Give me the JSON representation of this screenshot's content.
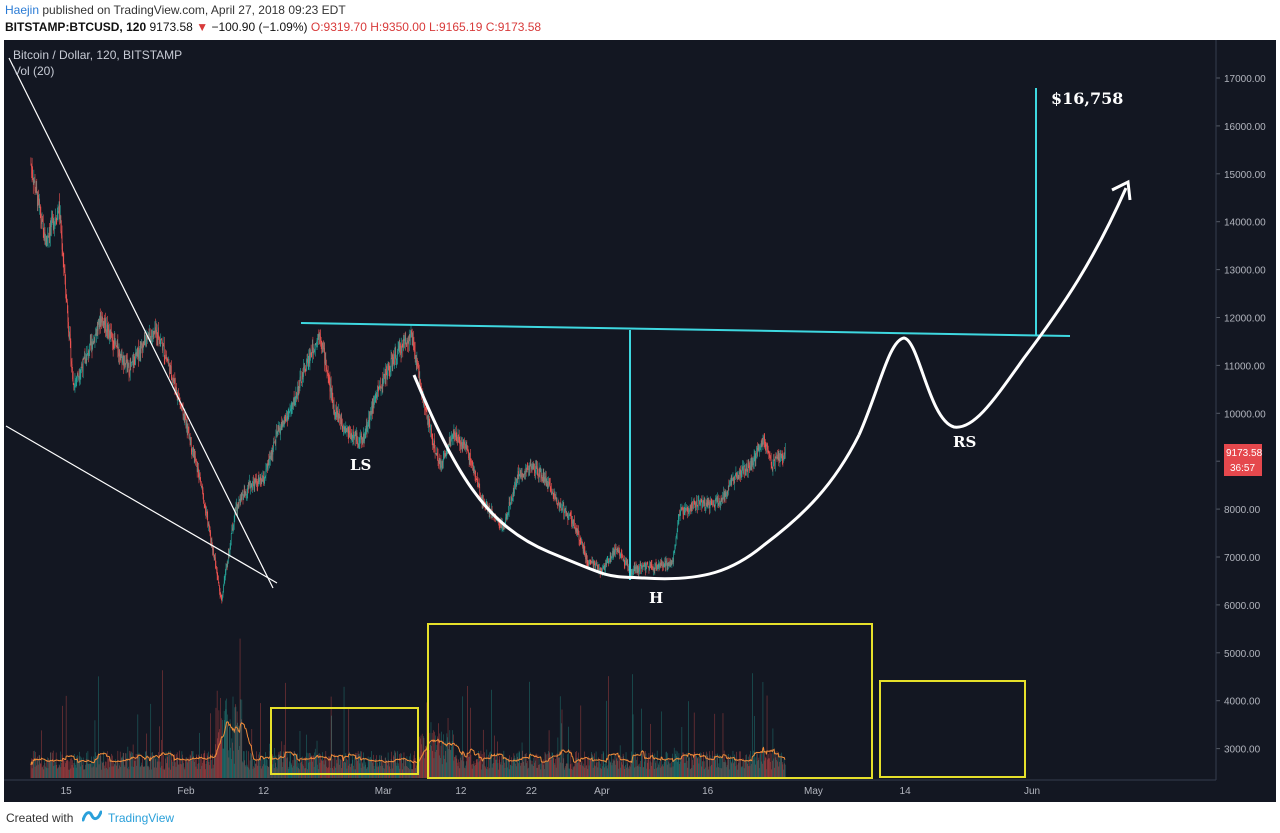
{
  "header": {
    "author": "Haejin",
    "published_text": "published on TradingView.com, April 27, 2018 09:23 EDT",
    "symbol": "BITSTAMP:BTCUSD, 120",
    "last": "9173.58",
    "change": "−100.90 (−1.09%)",
    "open": "O:9319.70",
    "high": "H:9350.00",
    "low": "L:9165.19",
    "close": "C:9173.58"
  },
  "legend": {
    "title": "Bitcoin / Dollar, 120, BITSTAMP",
    "volume": "Vol (20)"
  },
  "footer": {
    "created_with": "Created with",
    "brand": "TradingView"
  },
  "colors": {
    "background": "#131722",
    "up": "#26a69a",
    "down": "#ef5350",
    "annotation": "#ffffff",
    "neckline": "#3ed8e0",
    "box": "#e6e02a",
    "volume_ma": "#f08c3a",
    "price_label": "#e5484d"
  },
  "chart_data": {
    "type": "candlestick",
    "title": "Bitcoin / Dollar, 120, BITSTAMP",
    "x_ticks": [
      "15",
      "Feb",
      "12",
      "Mar",
      "12",
      "22",
      "Apr",
      "16",
      "May",
      "14",
      "Jun"
    ],
    "y_ticks": [
      3000,
      4000,
      5000,
      6000,
      7000,
      8000,
      9000,
      10000,
      11000,
      12000,
      13000,
      14000,
      15000,
      16000,
      17000
    ],
    "ylim": [
      2300,
      17900
    ],
    "last_price": "9173.58",
    "countdown": "36:57",
    "price_path": [
      [
        "Jan 10",
        15200
      ],
      [
        "Jan 12",
        13600
      ],
      [
        "Jan 14",
        14300
      ],
      [
        "Jan 16",
        10600
      ],
      [
        "Jan 18",
        11200
      ],
      [
        "Jan 20",
        12000
      ],
      [
        "Jan 22",
        11400
      ],
      [
        "Jan 24",
        10900
      ],
      [
        "Jan 26",
        11500
      ],
      [
        "Jan 28",
        11700
      ],
      [
        "Jan 30",
        10800
      ],
      [
        "Feb 1",
        9800
      ],
      [
        "Feb 3",
        8600
      ],
      [
        "Feb 5",
        7000
      ],
      [
        "Feb 6",
        6100
      ],
      [
        "Feb 8",
        8000
      ],
      [
        "Feb 10",
        8500
      ],
      [
        "Feb 12",
        8600
      ],
      [
        "Feb 14",
        9600
      ],
      [
        "Feb 16",
        10100
      ],
      [
        "Feb 18",
        11000
      ],
      [
        "Feb 20",
        11700
      ],
      [
        "Feb 22",
        10100
      ],
      [
        "Feb 24",
        9600
      ],
      [
        "Feb 26",
        9400
      ],
      [
        "Feb 28",
        10400
      ],
      [
        "Mar 2",
        11000
      ],
      [
        "Mar 4",
        11500
      ],
      [
        "Mar 5",
        11600
      ],
      [
        "Mar 7",
        10000
      ],
      [
        "Mar 9",
        8900
      ],
      [
        "Mar 11",
        9600
      ],
      [
        "Mar 13",
        9200
      ],
      [
        "Mar 15",
        8200
      ],
      [
        "Mar 18",
        7600
      ],
      [
        "Mar 20",
        8700
      ],
      [
        "Mar 22",
        8900
      ],
      [
        "Mar 24",
        8600
      ],
      [
        "Mar 26",
        8100
      ],
      [
        "Mar 28",
        7700
      ],
      [
        "Mar 30",
        6900
      ],
      [
        "Apr 1",
        6700
      ],
      [
        "Apr 3",
        7200
      ],
      [
        "Apr 5",
        6700
      ],
      [
        "Apr 7",
        6800
      ],
      [
        "Apr 9",
        6800
      ],
      [
        "Apr 11",
        6900
      ],
      [
        "Apr 12",
        7900
      ],
      [
        "Apr 14",
        8100
      ],
      [
        "Apr 16",
        8100
      ],
      [
        "Apr 18",
        8200
      ],
      [
        "Apr 20",
        8700
      ],
      [
        "Apr 22",
        8900
      ],
      [
        "Apr 24",
        9500
      ],
      [
        "Apr 25",
        8900
      ],
      [
        "Apr 27",
        9174
      ]
    ],
    "volume_ylim": [
      0,
      6000
    ],
    "annotations": {
      "labels": [
        "LS",
        "H",
        "RS",
        "$16,758"
      ],
      "neckline": [
        [
          "Feb 15",
          11850
        ],
        [
          "May 25",
          11600
        ]
      ],
      "projected_path": [
        [
          "May 5",
          10500
        ],
        [
          "May 8",
          11500
        ],
        [
          "May 12",
          9900
        ],
        [
          "May 14",
          9600
        ],
        [
          "May 20",
          10700
        ],
        [
          "May 26",
          12300
        ],
        [
          "Jun 1",
          14800
        ]
      ],
      "target_price": 16758,
      "volume_boxes": 3
    }
  }
}
